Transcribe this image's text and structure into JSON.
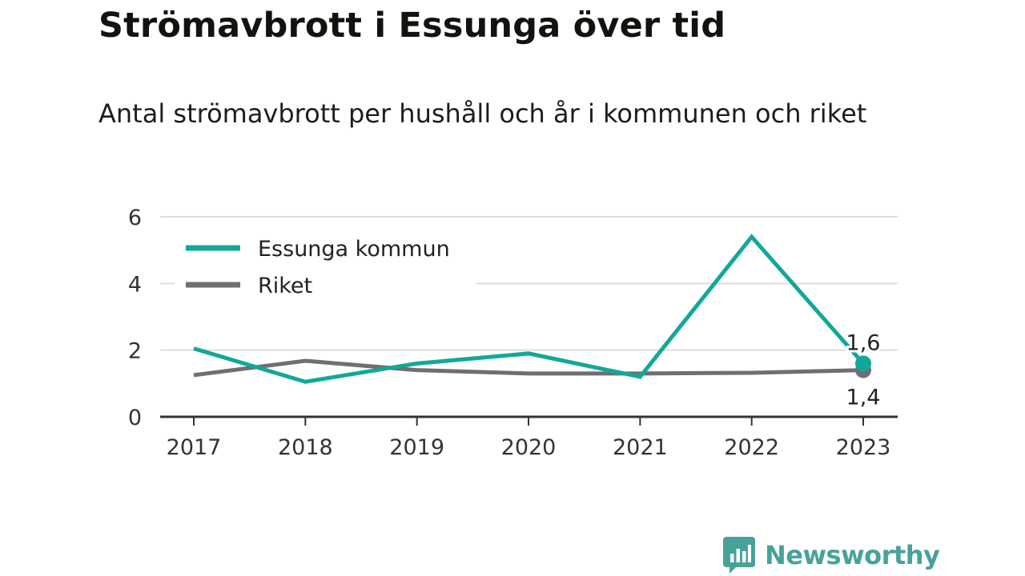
{
  "title": "Strömavbrott i Essunga över tid",
  "subtitle": "Antal strömavbrott per hushåll och år i kommunen och riket",
  "brand": {
    "name": "Newsworthy",
    "icon": "newsworthy-logo-icon",
    "color": "#47a39a"
  },
  "chart_data": {
    "type": "line",
    "title": "",
    "xlabel": "",
    "ylabel": "",
    "categories": [
      "2017",
      "2018",
      "2019",
      "2020",
      "2021",
      "2022",
      "2023"
    ],
    "ylim": [
      0,
      6
    ],
    "yticks": [
      0,
      2,
      4,
      6
    ],
    "ytick_labels": [
      "0",
      "2",
      "4",
      "6"
    ],
    "grid": true,
    "legend": "top-left",
    "series": [
      {
        "name": "Essunga kommun",
        "color": "#13a79a",
        "values": [
          2.05,
          1.05,
          1.6,
          1.9,
          1.2,
          5.4,
          1.6
        ],
        "end_label": "1,6"
      },
      {
        "name": "Riket",
        "color": "#6f6e73",
        "values": [
          1.25,
          1.68,
          1.4,
          1.3,
          1.3,
          1.32,
          1.4
        ],
        "end_label": "1,4"
      }
    ]
  }
}
